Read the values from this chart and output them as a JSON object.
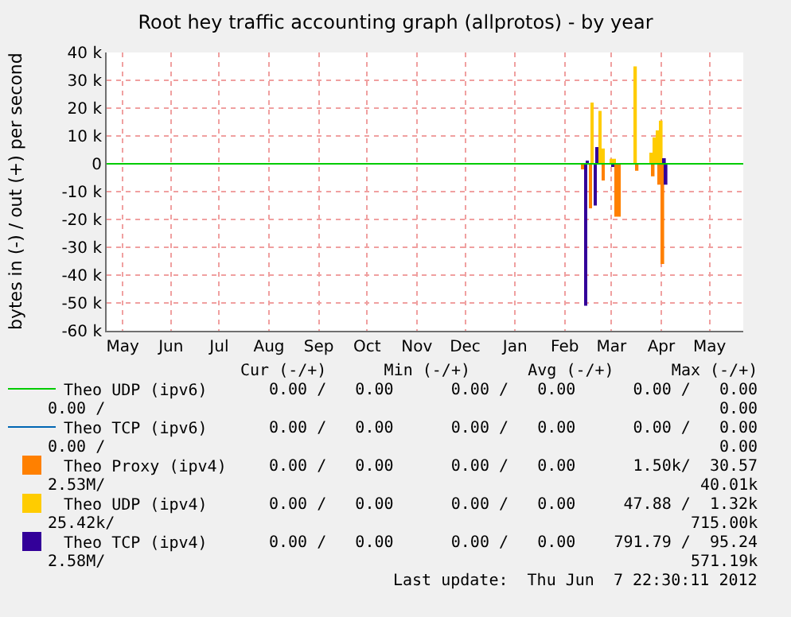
{
  "chart_data": {
    "type": "bar",
    "title": "Root hey traffic accounting graph (allprotos) - by year",
    "ylabel": "bytes in (-) / out (+) per second",
    "xlim": [
      "2011-05-06",
      "2012-06-05"
    ],
    "xticks": [
      {
        "value": "2011-05-16",
        "label": "May"
      },
      {
        "value": "2011-06-15",
        "label": "Jun"
      },
      {
        "value": "2011-07-15",
        "label": "Jul"
      },
      {
        "value": "2011-08-15",
        "label": "Aug"
      },
      {
        "value": "2011-09-15",
        "label": "Sep"
      },
      {
        "value": "2011-10-15",
        "label": "Oct"
      },
      {
        "value": "2011-11-15",
        "label": "Nov"
      },
      {
        "value": "2011-12-15",
        "label": "Dec"
      },
      {
        "value": "2012-01-15",
        "label": "Jan"
      },
      {
        "value": "2012-02-15",
        "label": "Feb"
      },
      {
        "value": "2012-03-15",
        "label": "Mar"
      },
      {
        "value": "2012-04-15",
        "label": "Apr"
      },
      {
        "value": "2012-05-15",
        "label": "May"
      }
    ],
    "ylim": [
      -60000,
      40000
    ],
    "yticks": [
      {
        "value": -60000,
        "label": "-60 k"
      },
      {
        "value": -50000,
        "label": "-50 k"
      },
      {
        "value": -40000,
        "label": "-40 k"
      },
      {
        "value": -30000,
        "label": "-30 k"
      },
      {
        "value": -20000,
        "label": "-20 k"
      },
      {
        "value": -10000,
        "label": "-10 k"
      },
      0,
      {
        "value": 10000,
        "label": "10 k"
      },
      {
        "value": 20000,
        "label": "20 k"
      },
      {
        "value": 30000,
        "label": "30 k"
      },
      {
        "value": 40000,
        "label": "40 k"
      }
    ],
    "grid": true,
    "legend": "bottom",
    "series": [
      {
        "name": "Theo UDP (ipv6)",
        "type": "line",
        "color": "#00cc00",
        "x": [
          "2011-05-06",
          "2012-06-05"
        ],
        "values": [
          0,
          0
        ]
      },
      {
        "name": "Theo TCP (ipv6)",
        "type": "line",
        "color": "#0066b3"
      },
      {
        "name": "Theo Proxy (ipv4)",
        "color": "#ff8000",
        "x": [
          "2012-02-26",
          "2012-03-02",
          "2012-03-10",
          "2012-03-18",
          "2012-03-20",
          "2012-03-31",
          "2012-04-10",
          "2012-04-14",
          "2012-04-16"
        ],
        "values": [
          -2000,
          -16000,
          -6000,
          -19000,
          -19000,
          -2500,
          -4500,
          -7500,
          -36000
        ]
      },
      {
        "name": "Theo UDP (ipv4)",
        "color": "#ffcc00",
        "x": [
          "2012-03-03",
          "2012-03-08",
          "2012-03-10",
          "2012-03-15",
          "2012-03-17",
          "2012-03-30",
          "2012-04-09",
          "2012-04-11",
          "2012-04-13",
          "2012-04-15"
        ],
        "values": [
          22000,
          19000,
          5500,
          1800,
          1800,
          35000,
          4000,
          9500,
          12000,
          15500
        ]
      },
      {
        "name": "Theo TCP (ipv4)",
        "color": "#330099",
        "x": [
          "2012-02-28",
          "2012-02-29",
          "2012-03-05",
          "2012-03-06",
          "2012-03-16",
          "2012-04-17",
          "2012-04-18"
        ],
        "values": [
          -51000,
          1000,
          -15000,
          6000,
          -1000,
          2000,
          -7500
        ]
      }
    ],
    "annotations": [
      "Cur (-/+)      Min (-/+)      Avg (-/+)      Max (-/+)",
      "0.00 /   0.00      0.00 /   0.00      0.00 /   0.00",
      "0.00 /",
      "0.00",
      "0.00 /   0.00      0.00 /   0.00      0.00 /   0.00",
      "0.00 /",
      "0.00",
      "0.00 /   0.00      0.00 /   0.00      1.50k/  30.57",
      "2.53M/",
      "40.01k",
      "0.00 /   0.00      0.00 /   0.00     47.88 /  1.32k",
      "25.42k/",
      "715.00k",
      "0.00 /   0.00      0.00 /   0.00    791.79 /  95.24",
      "2.58M/",
      "571.19k",
      "Last update:  Thu Jun  7 22:30:11 2012"
    ]
  }
}
